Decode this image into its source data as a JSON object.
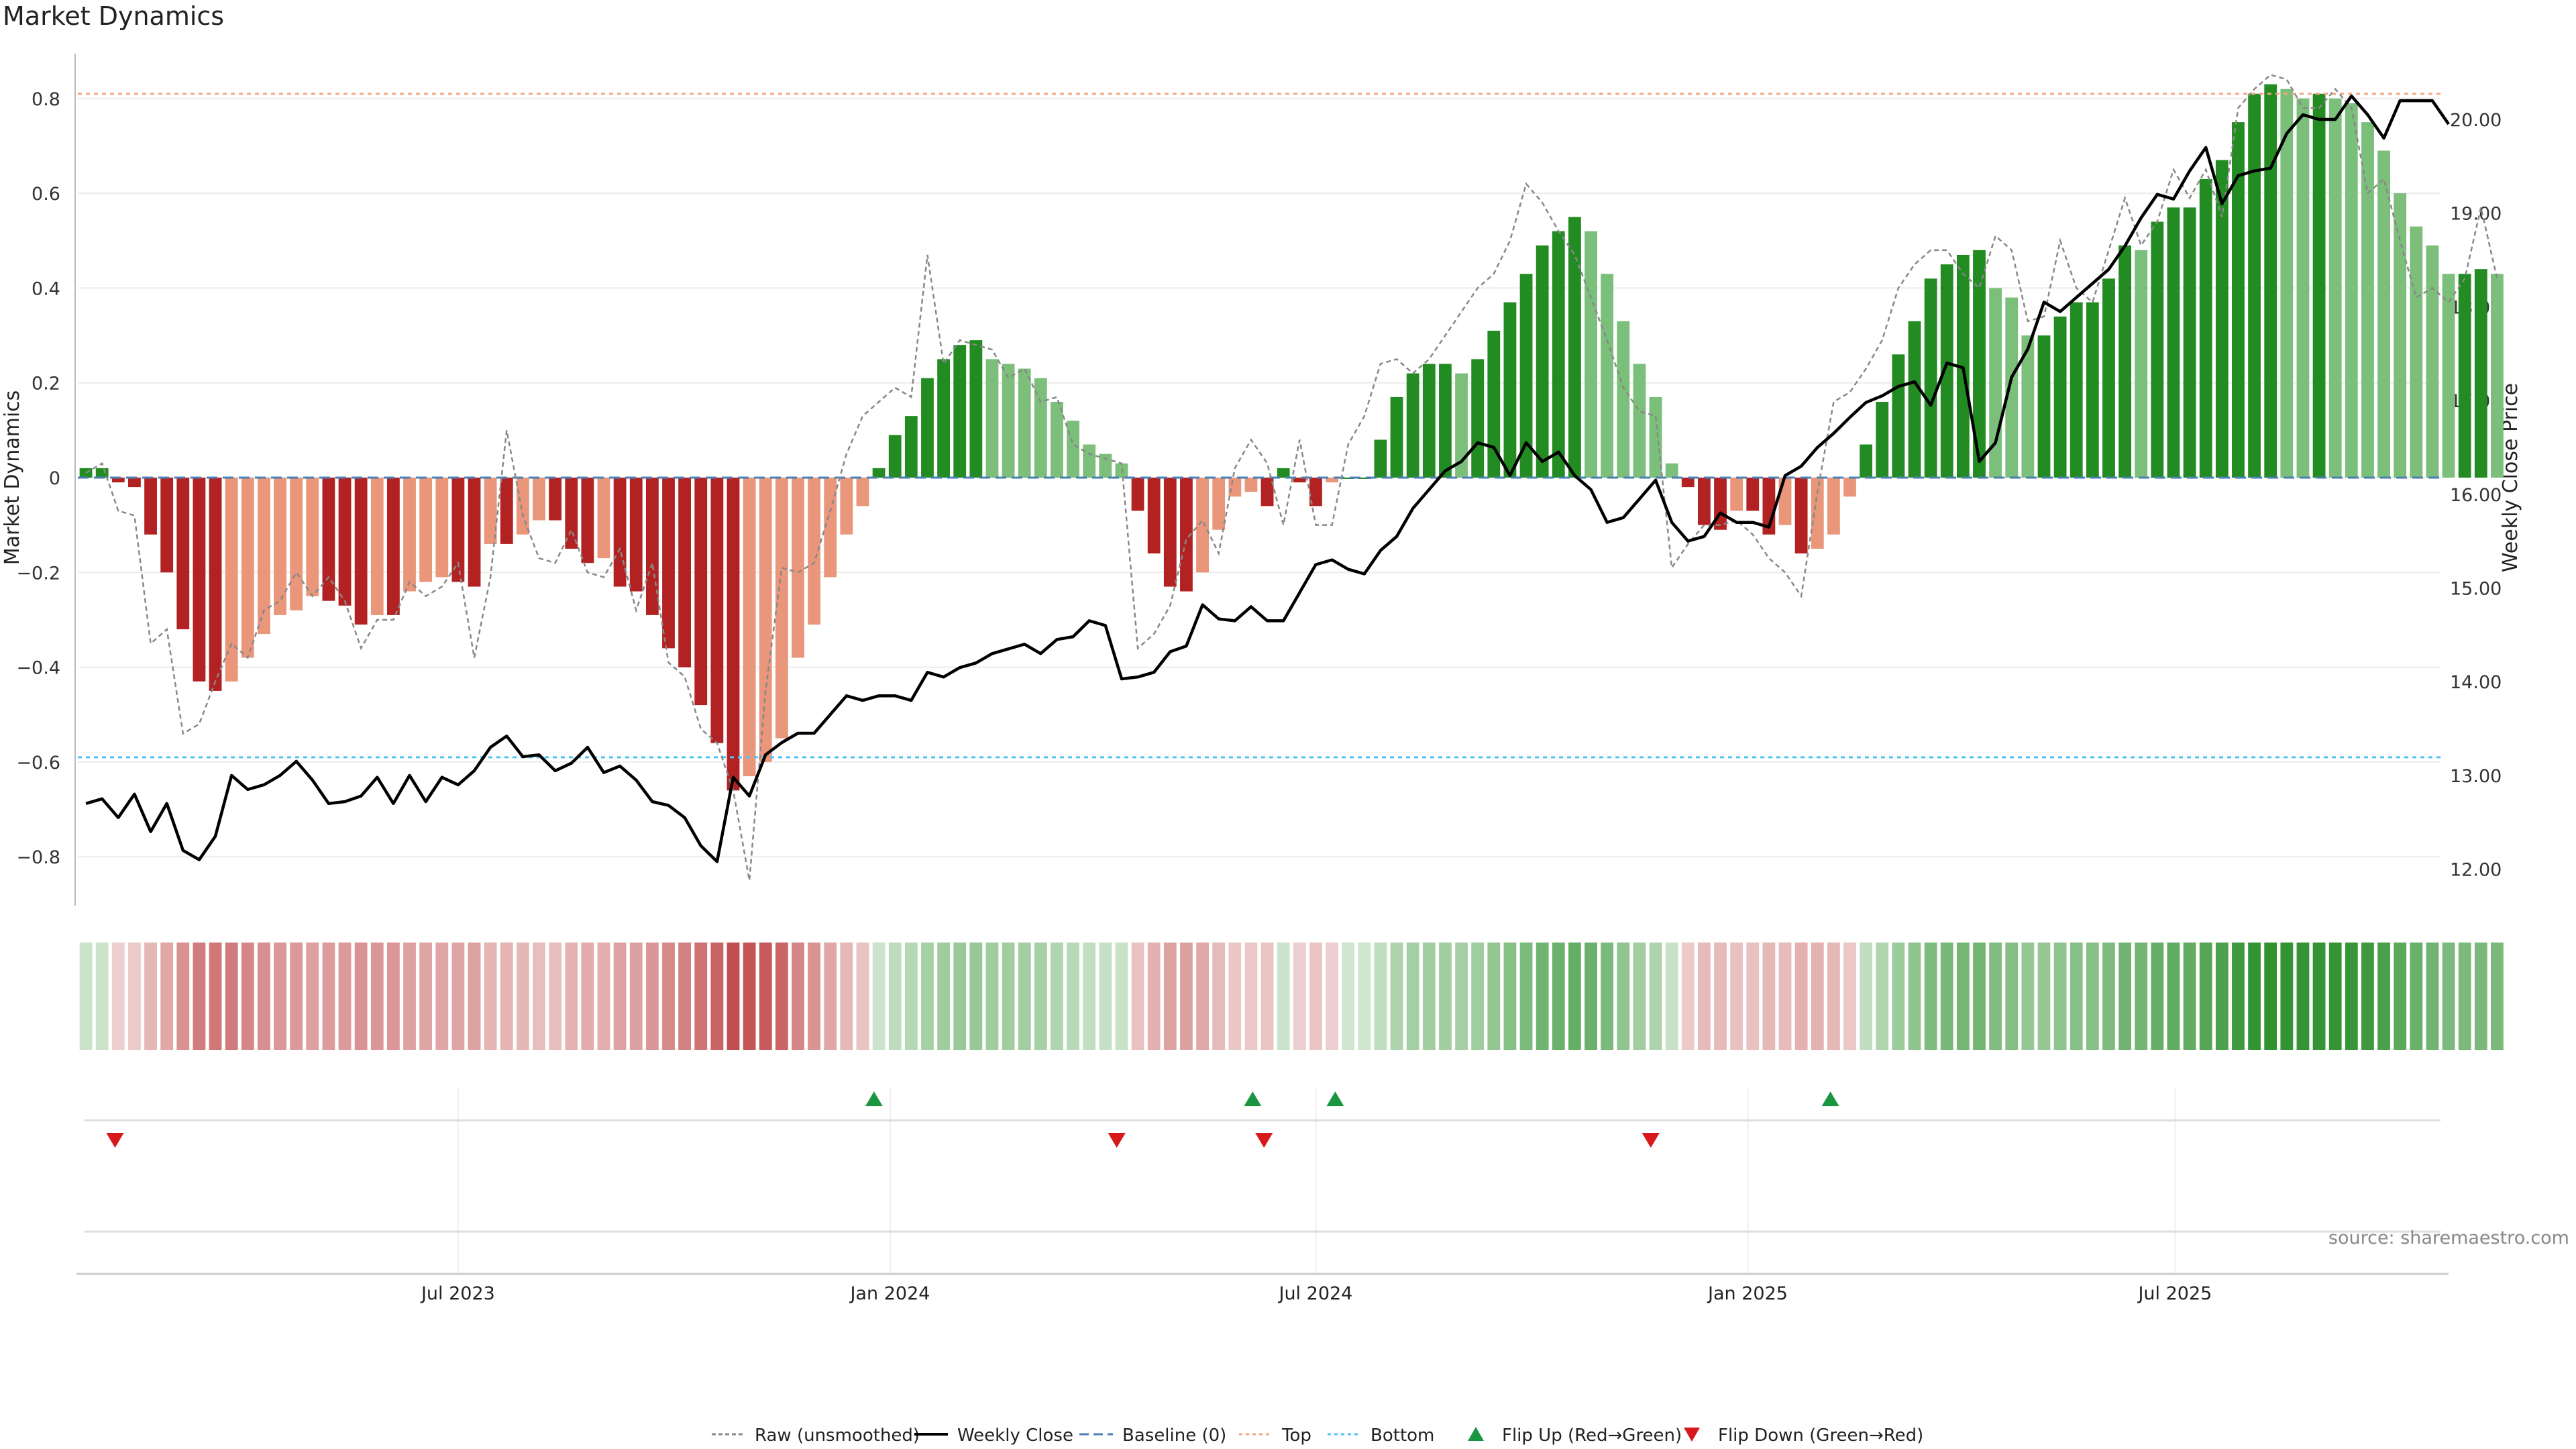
{
  "chart_data": {
    "type": "bar",
    "title": "Market Dynamics",
    "ylabel": "Market Dynamics",
    "y2label": "Weekly Close Price",
    "ylim": [
      -0.9,
      0.9
    ],
    "y2lim": [
      11.7,
      20.6
    ],
    "yticks": [
      0.8,
      0.6,
      0.4,
      0.2,
      0,
      -0.2,
      -0.4,
      -0.6,
      -0.8
    ],
    "ytick_labels": [
      "0.8",
      "0.6",
      "0.4",
      "0.2",
      "0",
      "−0.2",
      "−0.4",
      "−0.6",
      "−0.8"
    ],
    "y2ticks": [
      20,
      19,
      18,
      17,
      16,
      15,
      14,
      13,
      12
    ],
    "y2tick_labels": [
      "20.00",
      "19.00",
      "18.00",
      "17.00",
      "16.00",
      "15.00",
      "14.00",
      "13.00",
      "12.00"
    ],
    "top_line": 0.81,
    "bottom_line": -0.59,
    "x_weeks": 146,
    "xticks": [
      {
        "label": "Jul 2023",
        "week": 23.5
      },
      {
        "label": "Jan 2024",
        "week": 50.2
      },
      {
        "label": "Jul 2024",
        "week": 76.5
      },
      {
        "label": "Jan 2025",
        "week": 103.2
      },
      {
        "label": "Jul 2025",
        "week": 129.6
      }
    ],
    "bars": [
      0.02,
      0.02,
      -0.01,
      -0.02,
      -0.12,
      -0.2,
      -0.32,
      -0.43,
      -0.45,
      -0.43,
      -0.38,
      -0.33,
      -0.29,
      -0.28,
      -0.25,
      -0.26,
      -0.27,
      -0.31,
      -0.29,
      -0.29,
      -0.24,
      -0.22,
      -0.21,
      -0.22,
      -0.23,
      -0.14,
      -0.14,
      -0.12,
      -0.09,
      -0.09,
      -0.15,
      -0.18,
      -0.17,
      -0.23,
      -0.24,
      -0.29,
      -0.36,
      -0.4,
      -0.48,
      -0.56,
      -0.66,
      -0.63,
      -0.6,
      -0.55,
      -0.38,
      -0.31,
      -0.21,
      -0.12,
      -0.06,
      0.02,
      0.09,
      0.13,
      0.21,
      0.25,
      0.28,
      0.29,
      0.25,
      0.24,
      0.23,
      0.21,
      0.16,
      0.12,
      0.07,
      0.05,
      0.03,
      -0.07,
      -0.16,
      -0.23,
      -0.24,
      -0.2,
      -0.11,
      -0.04,
      -0.03,
      -0.06,
      0.02,
      -0.01,
      -0.06,
      -0.01,
      0.0,
      0.0,
      0.08,
      0.17,
      0.22,
      0.24,
      0.24,
      0.22,
      0.25,
      0.31,
      0.37,
      0.43,
      0.49,
      0.52,
      0.55,
      0.52,
      0.43,
      0.33,
      0.24,
      0.17,
      0.03,
      -0.02,
      -0.1,
      -0.11,
      -0.07,
      -0.07,
      -0.12,
      -0.1,
      -0.16,
      -0.15,
      -0.12,
      -0.04,
      0.07,
      0.16,
      0.26,
      0.33,
      0.42,
      0.45,
      0.47,
      0.48,
      0.4,
      0.38,
      0.3,
      0.3,
      0.34,
      0.37,
      0.37,
      0.42,
      0.49,
      0.48,
      0.54,
      0.57,
      0.57,
      0.63,
      0.67,
      0.75,
      0.81,
      0.83,
      0.82,
      0.8,
      0.81,
      0.8,
      0.79,
      0.75,
      0.69,
      0.6,
      0.53,
      0.49,
      0.43,
      0.43,
      0.44,
      0.43
    ],
    "raw": [
      0.01,
      0.03,
      -0.07,
      -0.08,
      -0.35,
      -0.32,
      -0.54,
      -0.52,
      -0.43,
      -0.35,
      -0.38,
      -0.28,
      -0.26,
      -0.2,
      -0.25,
      -0.21,
      -0.26,
      -0.36,
      -0.3,
      -0.3,
      -0.22,
      -0.25,
      -0.23,
      -0.18,
      -0.38,
      -0.21,
      0.1,
      -0.08,
      -0.17,
      -0.18,
      -0.11,
      -0.2,
      -0.21,
      -0.15,
      -0.28,
      -0.18,
      -0.39,
      -0.42,
      -0.53,
      -0.56,
      -0.66,
      -0.85,
      -0.45,
      -0.19,
      -0.2,
      -0.18,
      -0.07,
      0.05,
      0.13,
      0.16,
      0.19,
      0.17,
      0.47,
      0.24,
      0.29,
      0.28,
      0.27,
      0.21,
      0.23,
      0.16,
      0.17,
      0.07,
      0.05,
      0.04,
      0.03,
      -0.36,
      -0.33,
      -0.27,
      -0.13,
      -0.09,
      -0.16,
      0.02,
      0.08,
      0.03,
      -0.1,
      0.08,
      -0.1,
      -0.1,
      0.07,
      0.13,
      0.24,
      0.25,
      0.22,
      0.25,
      0.3,
      0.35,
      0.4,
      0.43,
      0.5,
      0.62,
      0.58,
      0.52,
      0.47,
      0.38,
      0.29,
      0.19,
      0.14,
      0.13,
      -0.19,
      -0.14,
      -0.1,
      -0.1,
      -0.09,
      -0.12,
      -0.17,
      -0.2,
      -0.25,
      -0.03,
      0.16,
      0.18,
      0.23,
      0.29,
      0.4,
      0.45,
      0.48,
      0.48,
      0.43,
      0.4,
      0.51,
      0.48,
      0.33,
      0.34,
      0.5,
      0.4,
      0.37,
      0.48,
      0.59,
      0.49,
      0.54,
      0.65,
      0.59,
      0.65,
      0.55,
      0.78,
      0.82,
      0.85,
      0.84,
      0.78,
      0.78,
      0.82,
      0.78,
      0.6,
      0.63,
      0.5,
      0.38,
      0.4,
      0.37,
      0.42,
      0.57,
      0.42
    ],
    "weekly_close": [
      12.7,
      12.75,
      12.55,
      12.8,
      12.4,
      12.7,
      12.2,
      12.1,
      12.35,
      13.0,
      12.85,
      12.9,
      13.0,
      13.15,
      12.95,
      12.7,
      12.72,
      12.78,
      12.98,
      12.7,
      13.0,
      12.72,
      12.98,
      12.9,
      13.05,
      13.3,
      13.42,
      13.2,
      13.22,
      13.05,
      13.13,
      13.3,
      13.03,
      13.1,
      12.95,
      12.72,
      12.68,
      12.55,
      12.25,
      12.08,
      12.98,
      12.78,
      13.22,
      13.35,
      13.45,
      13.45,
      13.65,
      13.85,
      13.8,
      13.85,
      13.85,
      13.8,
      14.1,
      14.05,
      14.15,
      14.2,
      14.3,
      14.35,
      14.4,
      14.3,
      14.45,
      14.48,
      14.65,
      14.6,
      14.03,
      14.05,
      14.1,
      14.32,
      14.38,
      14.82,
      14.67,
      14.65,
      14.8,
      14.65,
      14.65,
      14.95,
      15.25,
      15.3,
      15.2,
      15.15,
      15.4,
      15.55,
      15.85,
      16.05,
      16.25,
      16.35,
      16.55,
      16.5,
      16.2,
      16.55,
      16.35,
      16.45,
      16.2,
      16.05,
      15.7,
      15.75,
      15.95,
      16.15,
      15.7,
      15.5,
      15.55,
      15.8,
      15.7,
      15.7,
      15.65,
      16.2,
      16.3,
      16.5,
      16.65,
      16.82,
      16.98,
      17.05,
      17.15,
      17.2,
      16.95,
      17.4,
      17.35,
      16.35,
      16.55,
      17.25,
      17.55,
      18.05,
      17.95,
      18.1,
      18.25,
      18.4,
      18.65,
      18.95,
      19.2,
      19.15,
      19.45,
      19.7,
      19.1,
      19.4,
      19.45,
      19.48,
      19.85,
      20.05,
      20.0,
      20.0,
      20.25,
      20.05,
      19.8,
      20.2,
      20.2,
      20.2,
      19.95
    ],
    "flip_up_weeks": [
      49.2,
      72.6,
      77.7,
      108.3
    ],
    "flip_down_weeks": [
      2.3,
      64.2,
      73.3,
      97.2
    ],
    "source_note": "source: sharemaestro.com",
    "legend": [
      {
        "label": "Raw (unsmoothed)",
        "style": "raw"
      },
      {
        "label": "Weekly Close",
        "style": "close"
      },
      {
        "label": "Baseline (0)",
        "style": "baseline"
      },
      {
        "label": "Top",
        "style": "top"
      },
      {
        "label": "Bottom",
        "style": "bottom"
      },
      {
        "label": "Flip Up (Red→Green)",
        "style": "flip-up"
      },
      {
        "label": "Flip Down (Green→Red)",
        "style": "flip-down"
      }
    ],
    "colors": {
      "green_dark": "#228b22",
      "green_light": "#7bbf7b",
      "red_dark": "#b22222",
      "red_light": "#e9967a",
      "raw": "#888888",
      "close": "#000000",
      "baseline": "#4a7fb5",
      "top": "#f4a582",
      "bottom": "#4fc3f7",
      "flip_up": "#1a9641",
      "flip_down": "#d7191c"
    }
  }
}
